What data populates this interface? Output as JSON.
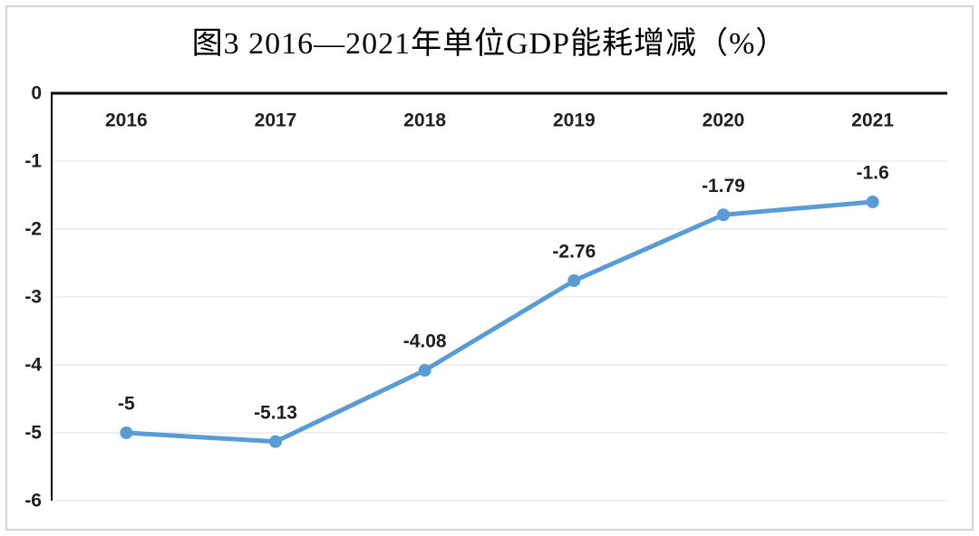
{
  "chart_data": {
    "type": "line",
    "title": "图3 2016—2021年单位GDP能耗增减（%）",
    "categories": [
      "2016",
      "2017",
      "2018",
      "2019",
      "2020",
      "2021"
    ],
    "values": [
      -5,
      -5.13,
      -4.08,
      -2.76,
      -1.79,
      -1.6
    ],
    "data_labels": [
      "-5",
      "-5.13",
      "-4.08",
      "-2.76",
      "-1.79",
      "-1.6"
    ],
    "y_ticks": [
      0,
      -1,
      -2,
      -3,
      -4,
      -5,
      -6
    ],
    "y_tick_labels": [
      "0",
      "-1",
      "-2",
      "-3",
      "-4",
      "-5",
      "-6"
    ],
    "ylim": [
      -6,
      0
    ],
    "xlabel": "",
    "ylabel": "",
    "grid": true,
    "legend": "none",
    "marker": "circle",
    "line_color": "#5B9BD5"
  },
  "colors": {
    "line": "#5B9BD5",
    "gridline": "#ebebeb",
    "axis": "#000000",
    "label_text": "#1f1f1f",
    "title_text": "#000000",
    "frame_border": "#d4d4d4",
    "background": "#ffffff"
  }
}
